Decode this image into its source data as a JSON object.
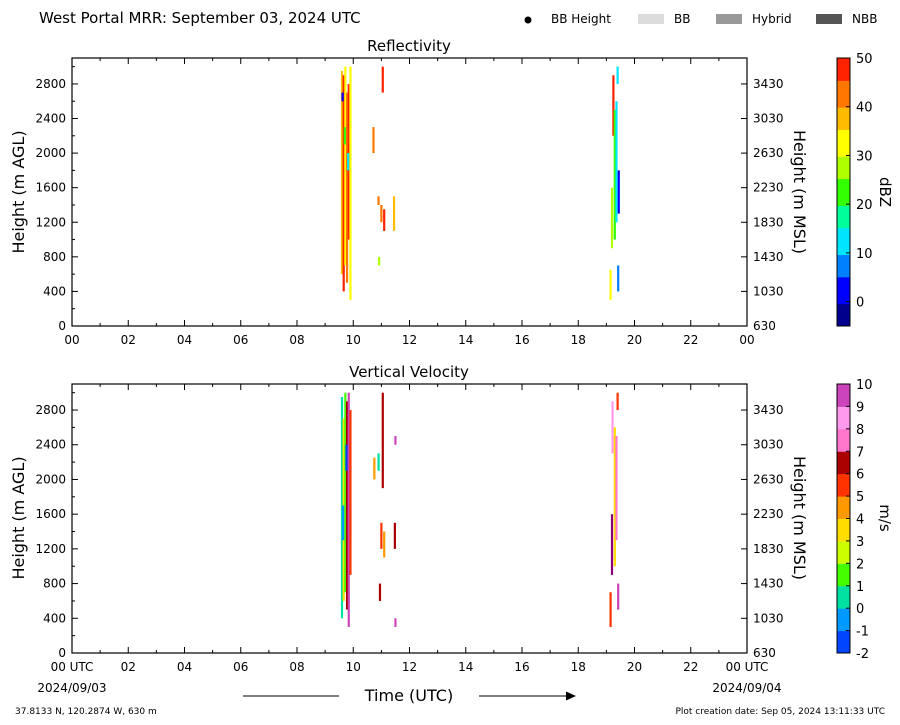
{
  "header": {
    "title": "West Portal MRR:  September 03, 2024 UTC",
    "legend": [
      {
        "name": "bb-height",
        "label": "BB Height",
        "color": "#000000",
        "symbol": "dot"
      },
      {
        "name": "bb",
        "label": "BB",
        "color": "#dcdcdc",
        "symbol": "box"
      },
      {
        "name": "hybrid",
        "label": "Hybrid",
        "color": "#999999",
        "symbol": "box"
      },
      {
        "name": "nbb",
        "label": "NBB",
        "color": "#555555",
        "symbol": "box"
      }
    ]
  },
  "footer": {
    "location": "37.8133 N, 120.2874 W, 630 m",
    "creation": "Plot creation date: Sep 05, 2024 13:11:33 UTC",
    "start_date": "2024/09/03",
    "end_date": "2024/09/04",
    "xaxis_label": "Time (UTC)"
  },
  "chart_data": [
    {
      "type": "heatmap",
      "title": "Reflectivity",
      "ylabel": "Height (m AGL)",
      "ylabel_right": "Height (m MSL)",
      "xlim": [
        0,
        24
      ],
      "ylim": [
        0,
        3100
      ],
      "x_ticks": [
        "00",
        "02",
        "04",
        "06",
        "08",
        "10",
        "12",
        "14",
        "16",
        "18",
        "20",
        "22",
        "00"
      ],
      "y_ticks": [
        0,
        400,
        800,
        1200,
        1600,
        2000,
        2400,
        2800
      ],
      "y_ticks_right": [
        630,
        1030,
        1430,
        1830,
        2230,
        2630,
        3030,
        3430
      ],
      "colorbar": {
        "label": "dBZ",
        "min": -5,
        "max": 50,
        "ticks": [
          0,
          10,
          20,
          30,
          40,
          50
        ]
      },
      "segments": [
        {
          "x": 9.6,
          "y0": 600,
          "y1": 2950,
          "value": 38
        },
        {
          "x": 9.66,
          "y0": 400,
          "y1": 2900,
          "value": 45
        },
        {
          "x": 9.72,
          "y0": 700,
          "y1": 3000,
          "value": 32
        },
        {
          "x": 9.78,
          "y0": 500,
          "y1": 2700,
          "value": 40
        },
        {
          "x": 9.84,
          "y0": 1000,
          "y1": 2800,
          "value": 48
        },
        {
          "x": 9.9,
          "y0": 300,
          "y1": 3000,
          "value": 34
        },
        {
          "x": 9.62,
          "y0": 2600,
          "y1": 2700,
          "value": 2
        },
        {
          "x": 9.7,
          "y0": 2100,
          "y1": 2300,
          "value": 20
        },
        {
          "x": 9.82,
          "y0": 1800,
          "y1": 2000,
          "value": 14
        },
        {
          "x": 10.92,
          "y0": 700,
          "y1": 800,
          "value": 25
        },
        {
          "x": 11.05,
          "y0": 2700,
          "y1": 3000,
          "value": 48
        },
        {
          "x": 10.72,
          "y0": 2000,
          "y1": 2300,
          "value": 42
        },
        {
          "x": 10.9,
          "y0": 1400,
          "y1": 1500,
          "value": 40
        },
        {
          "x": 11.0,
          "y0": 1200,
          "y1": 1400,
          "value": 44
        },
        {
          "x": 11.1,
          "y0": 1100,
          "y1": 1350,
          "value": 48
        },
        {
          "x": 11.45,
          "y0": 1100,
          "y1": 1500,
          "value": 38
        },
        {
          "x": 19.15,
          "y0": 300,
          "y1": 650,
          "value": 33
        },
        {
          "x": 19.2,
          "y0": 900,
          "y1": 1600,
          "value": 28
        },
        {
          "x": 19.25,
          "y0": 2200,
          "y1": 2900,
          "value": 45
        },
        {
          "x": 19.3,
          "y0": 1000,
          "y1": 2500,
          "value": 20
        },
        {
          "x": 19.36,
          "y0": 1200,
          "y1": 2600,
          "value": 10
        },
        {
          "x": 19.4,
          "y0": 2800,
          "y1": 3000,
          "value": 12
        },
        {
          "x": 19.42,
          "y0": 400,
          "y1": 700,
          "value": 8
        },
        {
          "x": 19.44,
          "y0": 1300,
          "y1": 1800,
          "value": 4
        }
      ]
    },
    {
      "type": "heatmap",
      "title": "Vertical Velocity",
      "ylabel": "Height (m AGL)",
      "ylabel_right": "Height (m MSL)",
      "xlim": [
        0,
        24
      ],
      "ylim": [
        0,
        3100
      ],
      "x_ticks": [
        "00 UTC",
        "02",
        "04",
        "06",
        "08",
        "10",
        "12",
        "14",
        "16",
        "18",
        "20",
        "22",
        "00 UTC"
      ],
      "y_ticks": [
        0,
        400,
        800,
        1200,
        1600,
        2000,
        2400,
        2800
      ],
      "y_ticks_right": [
        630,
        1030,
        1430,
        1830,
        2230,
        2630,
        3030,
        3430
      ],
      "colorbar": {
        "label": "m/s",
        "min": -2,
        "max": 10,
        "ticks": [
          -2,
          -1,
          0,
          1,
          2,
          3,
          4,
          5,
          6,
          7,
          8,
          9,
          10
        ]
      },
      "segments": [
        {
          "x": 9.6,
          "y0": 400,
          "y1": 2950,
          "value": 0
        },
        {
          "x": 9.66,
          "y0": 600,
          "y1": 2700,
          "value": 3
        },
        {
          "x": 9.72,
          "y0": 700,
          "y1": 3000,
          "value": 1
        },
        {
          "x": 9.78,
          "y0": 500,
          "y1": 2900,
          "value": 6
        },
        {
          "x": 9.84,
          "y0": 300,
          "y1": 3000,
          "value": 9
        },
        {
          "x": 9.9,
          "y0": 900,
          "y1": 2800,
          "value": 5
        },
        {
          "x": 9.64,
          "y0": 1300,
          "y1": 1700,
          "value": -1
        },
        {
          "x": 9.76,
          "y0": 2100,
          "y1": 2400,
          "value": -2
        },
        {
          "x": 10.75,
          "y0": 2000,
          "y1": 2250,
          "value": 4
        },
        {
          "x": 10.9,
          "y0": 2100,
          "y1": 2300,
          "value": 0
        },
        {
          "x": 11.05,
          "y0": 1900,
          "y1": 3000,
          "value": 6
        },
        {
          "x": 10.95,
          "y0": 600,
          "y1": 800,
          "value": 6
        },
        {
          "x": 11.0,
          "y0": 1200,
          "y1": 1500,
          "value": 5
        },
        {
          "x": 11.1,
          "y0": 1100,
          "y1": 1400,
          "value": 4
        },
        {
          "x": 11.48,
          "y0": 1200,
          "y1": 1500,
          "value": 6
        },
        {
          "x": 11.5,
          "y0": 300,
          "y1": 400,
          "value": 9
        },
        {
          "x": 11.5,
          "y0": 2400,
          "y1": 2500,
          "value": 9
        },
        {
          "x": 19.15,
          "y0": 300,
          "y1": 700,
          "value": 5
        },
        {
          "x": 19.2,
          "y0": 900,
          "y1": 1600,
          "value": 10
        },
        {
          "x": 19.22,
          "y0": 2300,
          "y1": 2900,
          "value": 8
        },
        {
          "x": 19.3,
          "y0": 1000,
          "y1": 2600,
          "value": 3
        },
        {
          "x": 19.36,
          "y0": 1300,
          "y1": 2500,
          "value": 7
        },
        {
          "x": 19.4,
          "y0": 2800,
          "y1": 3000,
          "value": 5
        },
        {
          "x": 19.42,
          "y0": 500,
          "y1": 800,
          "value": 9
        }
      ]
    }
  ]
}
